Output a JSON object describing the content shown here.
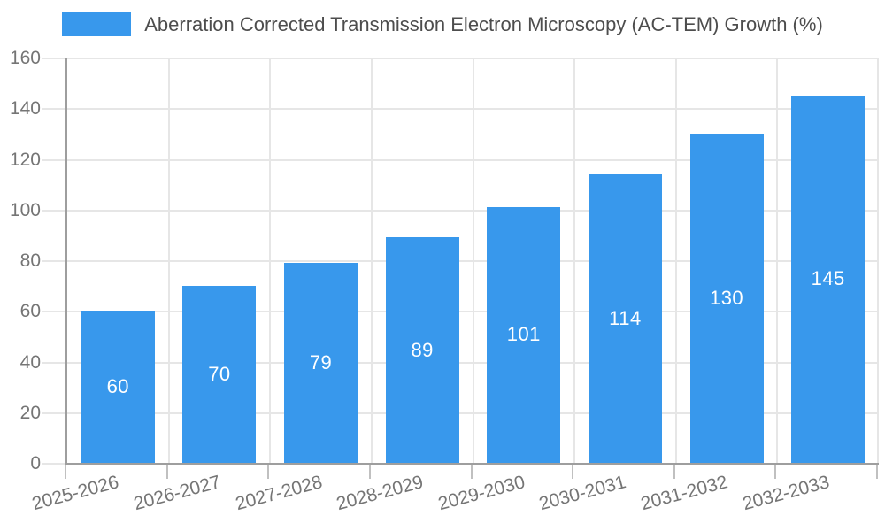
{
  "legend": {
    "label": "Aberration Corrected Transmission Electron Microscopy (AC-TEM) Growth (%)"
  },
  "chart_data": {
    "type": "bar",
    "title": "Aberration Corrected Transmission Electron Microscopy (AC-TEM) Growth (%)",
    "series_label": "Aberration Corrected Transmission Electron Microscopy (AC-TEM) Growth (%)",
    "categories": [
      "2025-2026",
      "2026-2027",
      "2027-2028",
      "2028-2029",
      "2029-2030",
      "2030-2031",
      "2031-2032",
      "2032-2033"
    ],
    "values": [
      60,
      70,
      79,
      89,
      101,
      114,
      130,
      145
    ],
    "value_labels": [
      "60",
      "70",
      "79",
      "89",
      "101",
      "114",
      "130",
      "145"
    ],
    "xlabel": "",
    "ylabel": "",
    "ylim": [
      0,
      160
    ],
    "ytick_step": 20,
    "yticks": [
      0,
      20,
      40,
      60,
      80,
      100,
      120,
      140,
      160
    ],
    "grid": true,
    "legend_position": "top-center",
    "colors": {
      "bar": "#3898EC",
      "axis": "#9E9E9E",
      "grid": "#E6E6E6",
      "tick": "#C0C0C0",
      "tick_label": "#757575",
      "legend_text": "#4D4D4D",
      "value_label": "#FFFFFF",
      "background": "#FFFFFF"
    }
  }
}
